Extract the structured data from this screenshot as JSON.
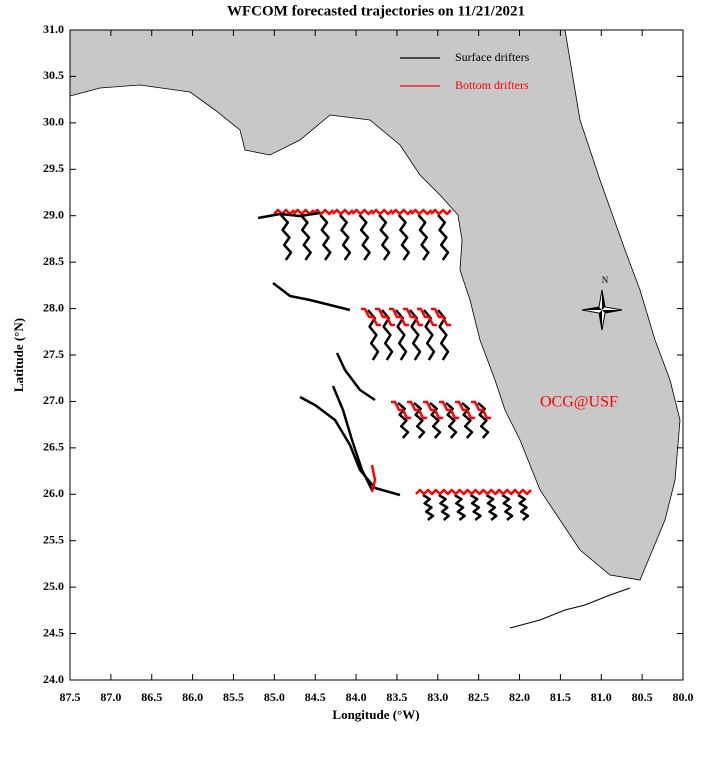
{
  "title": "WFCOM forecasted trajectories on 11/21/2021",
  "x_axis": {
    "label": "Longitude (°W)",
    "lim": [
      87.5,
      80
    ],
    "ticks": [
      87.5,
      {
        "value": 87,
        "label": "87.0"
      },
      86.5,
      {
        "value": 86,
        "label": "86.0"
      },
      85.5,
      {
        "value": 85,
        "label": "85.0"
      },
      84.5,
      {
        "value": 84,
        "label": "84.0"
      },
      83.5,
      {
        "value": 83,
        "label": "83.0"
      },
      82.5,
      {
        "value": 82,
        "label": "82.0"
      },
      81.5,
      {
        "value": 81,
        "label": "81.0"
      },
      80.5,
      {
        "value": 80,
        "label": "80.0"
      }
    ]
  },
  "y_axis": {
    "label": "Latitude (°N)",
    "lim": [
      24,
      31
    ],
    "ticks": [
      {
        "value": 31,
        "label": "31.0"
      },
      30.5,
      {
        "value": 30,
        "label": "30.0"
      },
      29.5,
      {
        "value": 29,
        "label": "29.0"
      },
      28.5,
      {
        "value": 28,
        "label": "28.0"
      },
      27.5,
      {
        "value": 27,
        "label": "27.0"
      },
      26.5,
      {
        "value": 26,
        "label": "26.0"
      },
      25.5,
      {
        "value": 25,
        "label": "25.0"
      },
      24.5,
      {
        "value": 24,
        "label": "24.0"
      }
    ]
  },
  "legend": [
    {
      "name": "Surface drifters",
      "color": "#000000"
    },
    {
      "name": "Bottom drifters",
      "color": "#ff0000"
    }
  ],
  "annotation": "OCG@USF",
  "compass": "N"
}
